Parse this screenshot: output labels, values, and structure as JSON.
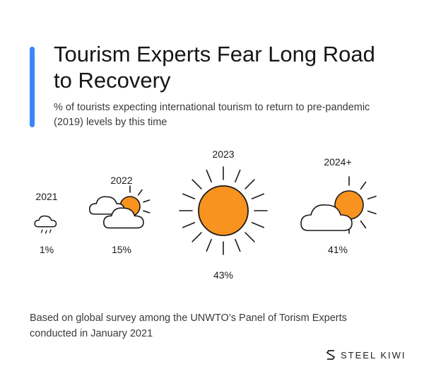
{
  "title": "Tourism Experts Fear Long Road to Recovery",
  "subtitle": "% of tourists expecting international tourism to return to pre-pandemic (2019) levels by this time",
  "footnote": "Based on global survey among the UNWTO’s Panel of Torism Experts conducted in January 2021",
  "brand": {
    "name": "STEEL KIWI",
    "logo_icon": "steel-kiwi-logo-icon"
  },
  "colors": {
    "accent": "#3b86f7",
    "sun": "#f7931e",
    "outline": "#1a1a1a"
  },
  "chart_data": {
    "type": "pictograph",
    "categories": [
      "2021",
      "2022",
      "2023",
      "2024+"
    ],
    "values": [
      1,
      15,
      43,
      41
    ],
    "value_labels": [
      "1%",
      "15%",
      "43%",
      "41%"
    ],
    "icons": [
      "rain-cloud-icon",
      "cloud-sun-icon",
      "sun-icon",
      "cloud-sun-icon"
    ],
    "unit": "%"
  }
}
